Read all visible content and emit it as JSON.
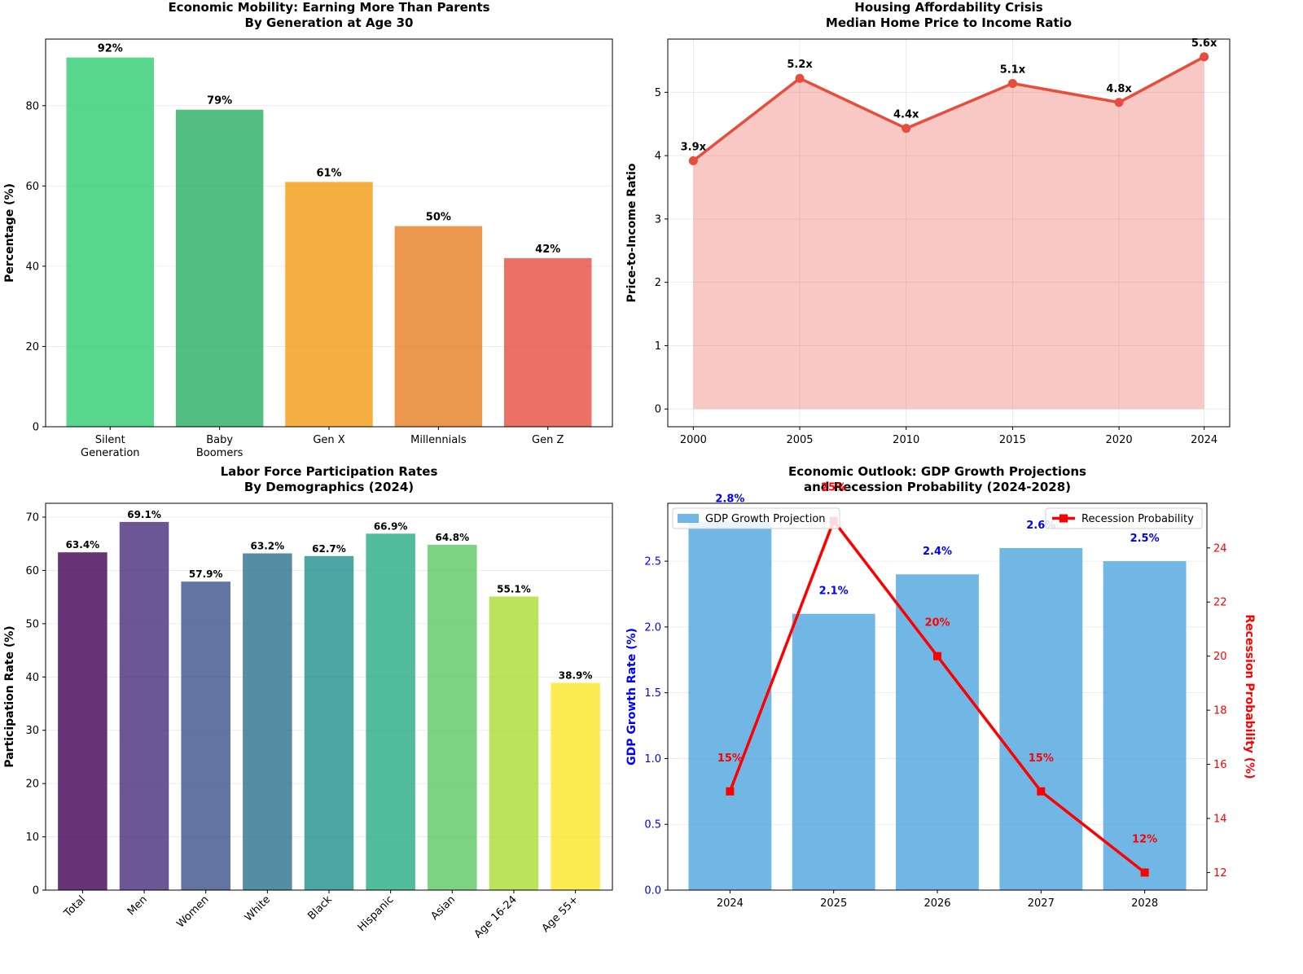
{
  "chart_data": [
    {
      "id": "mobility",
      "type": "bar",
      "title_lines": [
        "Economic Mobility: Earning More Than Parents",
        "By Generation at Age 30"
      ],
      "ylabel": "Percentage (%)",
      "categories": [
        [
          "Silent",
          "Generation"
        ],
        [
          "Baby",
          "Boomers"
        ],
        [
          "Gen X"
        ],
        [
          "Millennials"
        ],
        [
          "Gen Z"
        ]
      ],
      "values": [
        92,
        79,
        61,
        50,
        42
      ],
      "labels": [
        "92%",
        "79%",
        "61%",
        "50%",
        "42%"
      ],
      "colors": [
        "#2ecc71",
        "#27ae60",
        "#f39c12",
        "#e67e22",
        "#e74c3c"
      ],
      "ylim": [
        0,
        96.6
      ],
      "yticks": [
        0,
        20,
        40,
        60,
        80
      ],
      "ytick_labels": [
        "0",
        "20",
        "40",
        "60",
        "80"
      ],
      "grid": "y"
    },
    {
      "id": "housing",
      "type": "area",
      "title_lines": [
        "Housing Affordability Crisis",
        "Median Home Price to Income Ratio"
      ],
      "ylabel": "Price-to-Income Ratio",
      "x": [
        2000,
        2005,
        2010,
        2015,
        2020,
        2024
      ],
      "y": [
        3.92,
        5.22,
        4.43,
        5.14,
        4.84,
        5.56
      ],
      "labels": [
        "3.9x",
        "5.2x",
        "4.4x",
        "5.1x",
        "4.8x",
        "5.6x"
      ],
      "xticks": [
        2000,
        2005,
        2010,
        2015,
        2020,
        2024
      ],
      "xtick_labels": [
        "2000",
        "2005",
        "2010",
        "2015",
        "2020",
        "2024"
      ],
      "yticks": [
        0,
        1,
        2,
        3,
        4,
        5
      ],
      "ytick_labels": [
        "0",
        "1",
        "2",
        "3",
        "4",
        "5"
      ],
      "xlim": [
        1998.8,
        2025.2
      ],
      "ylim": [
        -0.28,
        5.84
      ],
      "line_color": "#e74c3c",
      "fill_color": "#e74c3c",
      "grid": "both"
    },
    {
      "id": "labor",
      "type": "bar",
      "title_lines": [
        "Labor Force Participation Rates",
        "By Demographics (2024)"
      ],
      "ylabel": "Participation Rate (%)",
      "categories": [
        "Total",
        "Men",
        "Women",
        "White",
        "Black",
        "Hispanic",
        "Asian",
        "Age 16-24",
        "Age 55+"
      ],
      "values": [
        63.4,
        69.1,
        57.9,
        63.2,
        62.7,
        66.9,
        64.8,
        55.1,
        38.9
      ],
      "labels": [
        "63.4%",
        "69.1%",
        "57.9%",
        "63.2%",
        "62.7%",
        "66.9%",
        "64.8%",
        "55.1%",
        "38.9%"
      ],
      "colors": [
        "#440154",
        "#472c7a",
        "#3b518b",
        "#2c718e",
        "#21908d",
        "#27ad81",
        "#5cc863",
        "#aadc32",
        "#fde725"
      ],
      "ylim": [
        0,
        72.6
      ],
      "yticks": [
        0,
        10,
        20,
        30,
        40,
        50,
        60,
        70
      ],
      "ytick_labels": [
        "0",
        "10",
        "20",
        "30",
        "40",
        "50",
        "60",
        "70"
      ],
      "grid": "y"
    },
    {
      "id": "outlook",
      "type": "bar+line",
      "title_lines": [
        "Economic Outlook: GDP Growth Projections",
        "and Recession Probability (2024-2028)"
      ],
      "ylabel_left": "GDP Growth Rate (%)",
      "ylabel_right": "Recession Probability (%)",
      "categories": [
        "2024",
        "2025",
        "2026",
        "2027",
        "2028"
      ],
      "series": [
        {
          "name": "GDP Growth Projection",
          "type": "bar",
          "axis": "left",
          "values": [
            2.8,
            2.1,
            2.4,
            2.6,
            2.5
          ],
          "labels": [
            "2.8%",
            "2.1%",
            "2.4%",
            "2.6%",
            "2.5%"
          ],
          "color": "#3498db"
        },
        {
          "name": "Recession Probability",
          "type": "line",
          "axis": "right",
          "values": [
            15,
            25,
            20,
            15,
            12
          ],
          "labels": [
            "15%",
            "25%",
            "20%",
            "15%",
            "12%"
          ],
          "color": "#ff0000"
        }
      ],
      "ylim_left": [
        0,
        2.94
      ],
      "yticks_left": [
        0.0,
        0.5,
        1.0,
        1.5,
        2.0,
        2.5
      ],
      "ytick_labels_left": [
        "0.0",
        "0.5",
        "1.0",
        "1.5",
        "2.0",
        "2.5"
      ],
      "ylim_right": [
        11.35,
        25.65
      ],
      "yticks_right": [
        12,
        14,
        16,
        18,
        20,
        22,
        24
      ],
      "ytick_labels_right": [
        "12",
        "14",
        "16",
        "18",
        "20",
        "22",
        "24"
      ],
      "left_color": "#0000ff",
      "right_color": "#ff0000",
      "legend": [
        {
          "label": "GDP Growth Projection",
          "position": "upper-left"
        },
        {
          "label": "Recession Probability",
          "position": "upper-right"
        }
      ],
      "grid": "y"
    }
  ]
}
